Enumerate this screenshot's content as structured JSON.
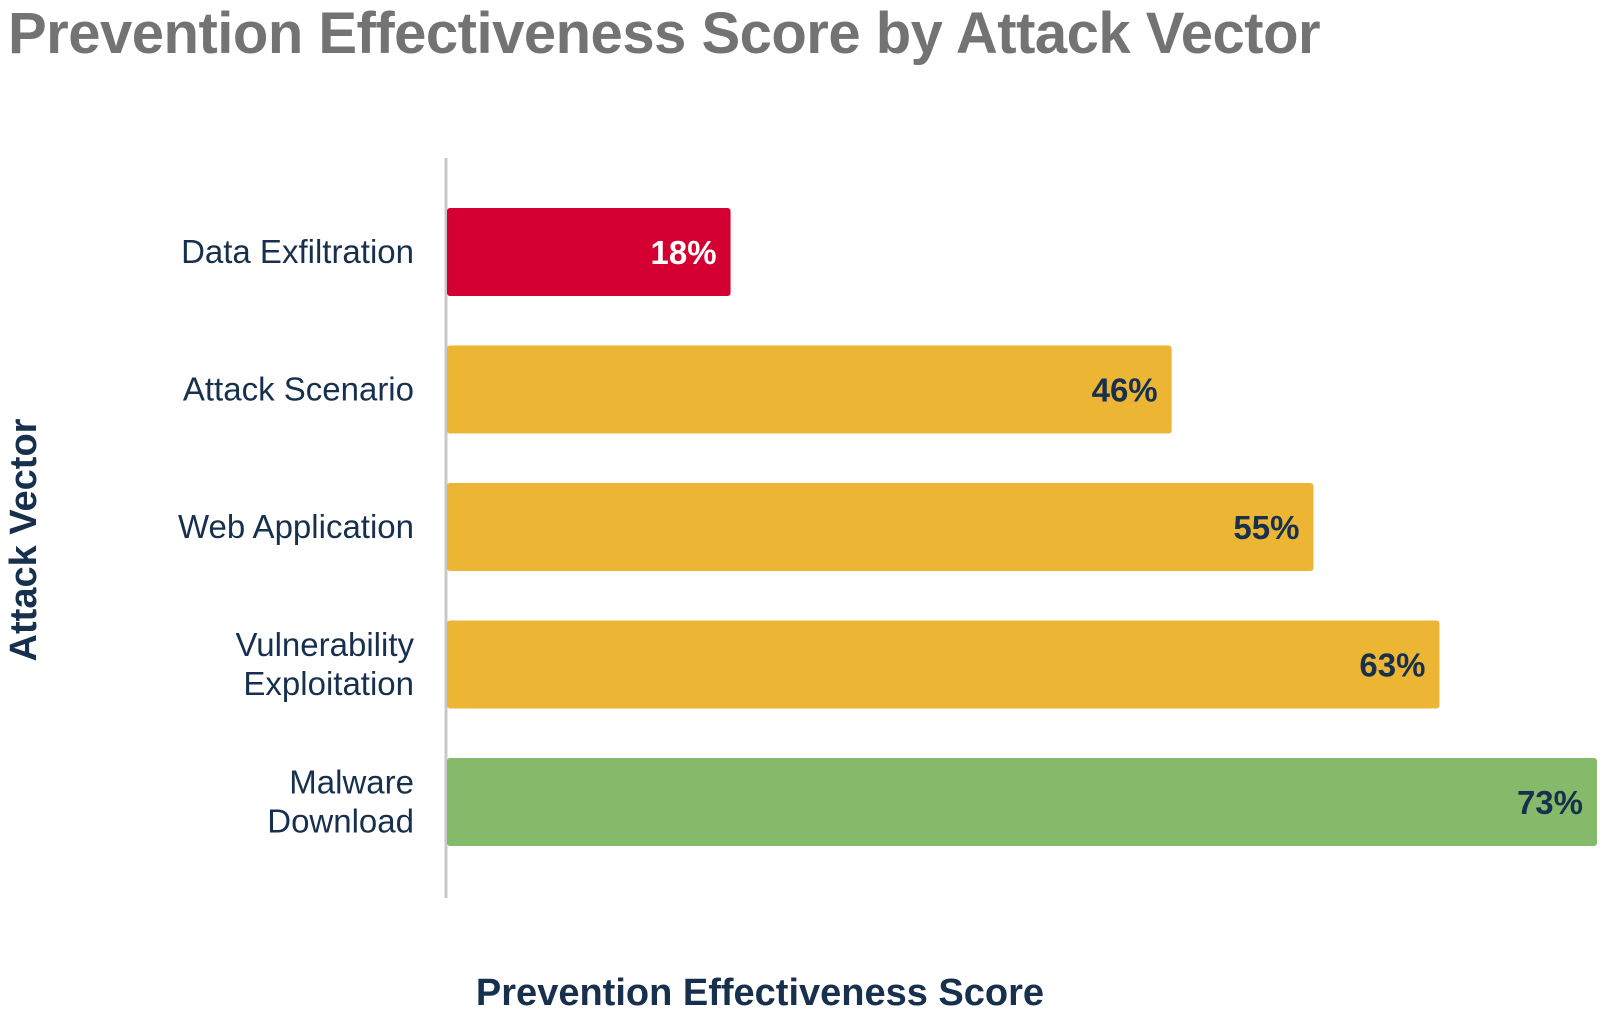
{
  "chart_data": {
    "type": "bar",
    "orientation": "horizontal",
    "title": "Prevention Effectiveness Score by Attack Vector",
    "xlabel": "Prevention Effectiveness Score",
    "ylabel": "Attack Vector",
    "categories": [
      [
        "Data Exfiltration"
      ],
      [
        "Attack Scenario"
      ],
      [
        "Web Application"
      ],
      [
        "Vulnerability",
        "Exploitation"
      ],
      [
        "Malware",
        "Download"
      ]
    ],
    "values": [
      18,
      46,
      55,
      63,
      73
    ],
    "data_labels": [
      "18%",
      "46%",
      "55%",
      "63%",
      "73%"
    ],
    "bar_colors": [
      "#d30031",
      "#ecb534",
      "#ecb534",
      "#ecb534",
      "#86ba6b"
    ],
    "label_colors": [
      "#ffffff",
      "#17304d",
      "#17304d",
      "#17304d",
      "#17304d"
    ],
    "xlim": [
      0,
      73
    ],
    "grid": false,
    "legend": "none"
  }
}
